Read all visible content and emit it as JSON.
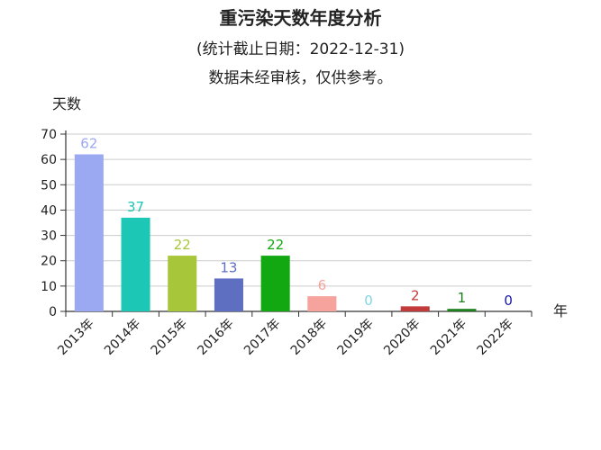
{
  "chart_data": {
    "type": "bar",
    "title": "重污染天数年度分析",
    "subtitle": [
      "(统计截止日期：2022-12-31)",
      "数据未经审核，仅供参考。"
    ],
    "ylabel": "天数",
    "xlabel": "年",
    "ylim": [
      0,
      70
    ],
    "yticks": [
      0,
      10,
      20,
      30,
      40,
      50,
      60,
      70
    ],
    "grid": true,
    "categories": [
      "2013年",
      "2014年",
      "2015年",
      "2016年",
      "2017年",
      "2018年",
      "2019年",
      "2020年",
      "2021年",
      "2022年"
    ],
    "values": [
      62,
      37,
      22,
      13,
      22,
      6,
      0,
      2,
      1,
      0
    ],
    "colors": [
      "#9BA8F2",
      "#1CC7B5",
      "#A8C63A",
      "#5E6FC2",
      "#12A812",
      "#F5A39C",
      "#7FD6E6",
      "#C23A3A",
      "#1D7F1D",
      "#1A1AA8"
    ]
  }
}
